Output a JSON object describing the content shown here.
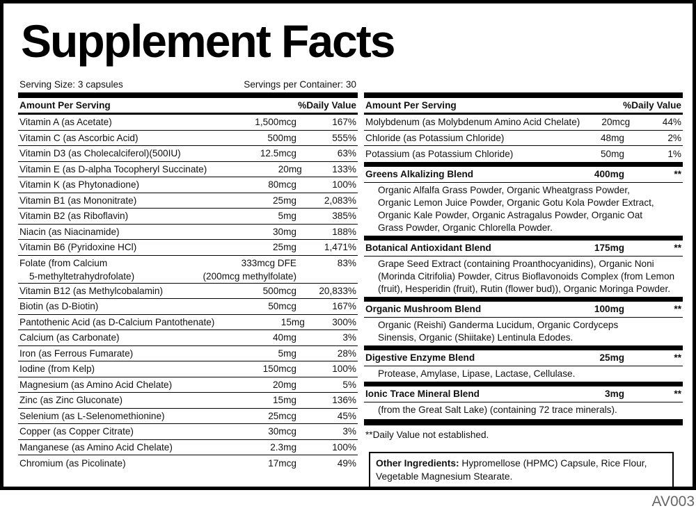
{
  "title": "Supplement Facts",
  "product_code": "AV003",
  "serving_size": "Serving Size: 3 capsules",
  "servings_per_container": "Servings per Container: 30",
  "header_amount": "Amount Per Serving",
  "header_dv": "%Daily Value",
  "left_rows": [
    {
      "name": "Vitamin A (as Acetate)",
      "amount": "1,500mcg",
      "dv": "167%"
    },
    {
      "name": "Vitamin C (as Ascorbic Acid)",
      "amount": "500mg",
      "dv": "555%"
    },
    {
      "name": "Vitamin D3 (as Cholecalciferol)(500IU)",
      "amount": "12.5mcg",
      "dv": "63%"
    },
    {
      "name": "Vitamin E (as D-alpha Tocopheryl Succinate)",
      "amount": "20mg",
      "dv": "133%"
    },
    {
      "name": "Vitamin K (as Phytonadione)",
      "amount": "80mcg",
      "dv": "100%"
    },
    {
      "name": "Vitamin B1 (as Mononitrate)",
      "amount": "25mg",
      "dv": "2,083%"
    },
    {
      "name": "Vitamin B2 (as Riboflavin)",
      "amount": "5mg",
      "dv": "385%"
    },
    {
      "name": "Niacin (as Niacinamide)",
      "amount": "30mg",
      "dv": "188%"
    },
    {
      "name": "Vitamin B6 (Pyridoxine HCl)",
      "amount": "25mg",
      "dv": "1,471%"
    },
    {
      "name": "Folate (from Calcium",
      "name2": "5-methyltetrahydrofolate)",
      "amount": "333mcg DFE",
      "amount2": "(200mcg methylfolate)",
      "dv": "83%"
    },
    {
      "name": "Vitamin B12 (as Methylcobalamin)",
      "amount": "500mcg",
      "dv": "20,833%"
    },
    {
      "name": "Biotin (as D-Biotin)",
      "amount": "50mcg",
      "dv": "167%"
    },
    {
      "name": "Pantothenic Acid (as D-Calcium Pantothenate)",
      "amount": "15mg",
      "dv": "300%"
    },
    {
      "name": "Calcium (as Carbonate)",
      "amount": "40mg",
      "dv": "3%"
    },
    {
      "name": "Iron (as Ferrous Fumarate)",
      "amount": "5mg",
      "dv": "28%"
    },
    {
      "name": "Iodine (from Kelp)",
      "amount": "150mcg",
      "dv": "100%"
    },
    {
      "name": "Magnesium (as Amino Acid Chelate)",
      "amount": "20mg",
      "dv": "5%"
    },
    {
      "name": "Zinc (as Zinc Gluconate)",
      "amount": "15mg",
      "dv": "136%"
    },
    {
      "name": "Selenium (as L-Selenomethionine)",
      "amount": "25mcg",
      "dv": "45%"
    },
    {
      "name": "Copper (as Copper Citrate)",
      "amount": "30mcg",
      "dv": "3%"
    },
    {
      "name": "Manganese (as Amino Acid Chelate)",
      "amount": "2.3mg",
      "dv": "100%"
    },
    {
      "name": "Chromium (as Picolinate)",
      "amount": "17mcg",
      "dv": "49%"
    }
  ],
  "right_rows": [
    {
      "name": "Molybdenum (as Molybdenum Amino Acid Chelate)",
      "amount": "20mcg",
      "dv": "44%"
    },
    {
      "name": "Chloride (as Potassium Chloride)",
      "amount": "48mg",
      "dv": "2%"
    },
    {
      "name": "Potassium (as Potassium Chloride)",
      "amount": "50mg",
      "dv": "1%"
    }
  ],
  "blends": [
    {
      "name": "Greens Alkalizing Blend",
      "amount": "400mg",
      "dv": "**",
      "lines": [
        "Organic Alfalfa Grass Powder, Organic Wheatgrass Powder,",
        "Organic Lemon Juice Powder, Organic Gotu Kola Powder Extract,",
        "Organic Kale Powder, Organic Astragalus Powder, Organic Oat",
        "Grass Powder, Organic Chlorella Powder."
      ]
    },
    {
      "name": "Botanical Antioxidant Blend",
      "amount": "175mg",
      "dv": "**",
      "lines": [
        "Grape Seed Extract (containing Proanthocyanidins), Organic Noni",
        "(Morinda Citrifolia) Powder, Citrus Bioflavonoids Complex (from Lemon",
        "(fruit), Hesperidin (fruit), Rutin (flower bud)), Organic Moringa Powder."
      ]
    },
    {
      "name": "Organic Mushroom Blend",
      "amount": "100mg",
      "dv": "**",
      "lines": [
        "Organic (Reishi) Ganderma Lucidum, Organic Cordyceps",
        "Sinensis, Organic (Shiitake) Lentinula Edodes."
      ]
    },
    {
      "name": "Digestive Enzyme Blend",
      "amount": "25mg",
      "dv": "**",
      "lines": [
        "Protease, Amylase, Lipase, Lactase, Cellulase."
      ]
    },
    {
      "name": "Ionic Trace Mineral Blend",
      "amount": "3mg",
      "dv": "**",
      "lines": [
        "(from the Great Salt Lake) (containing 72 trace minerals)."
      ]
    }
  ],
  "footnote": "**Daily Value not established.",
  "other_ingredients_label": "Other Ingredients:",
  "other_ingredients_text": " Hypromellose (HPMC) Capsule, Rice Flour, Vegetable Magnesium Stearate."
}
